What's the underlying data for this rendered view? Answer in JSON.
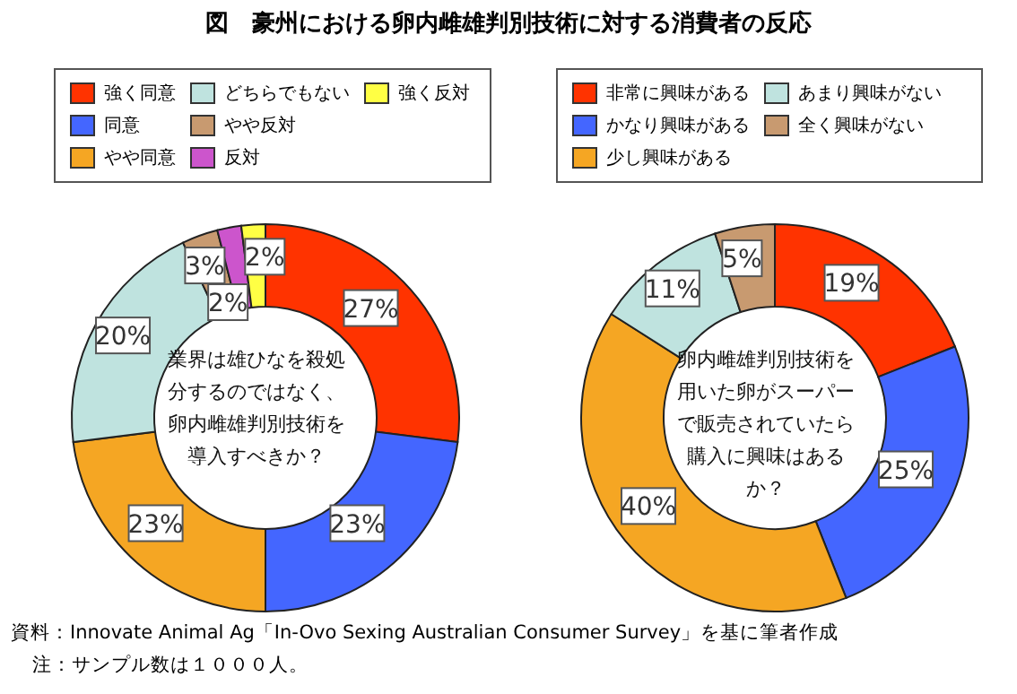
{
  "chart_data": [
    {
      "type": "donut",
      "title": "図　豪州における卵内雌雄判別技術に対する消費者の反応",
      "categories": [
        "強く同意",
        "同意",
        "やや同意",
        "どちらでもない",
        "やや反対",
        "反対",
        "強く反対"
      ],
      "values": [
        27,
        23,
        23,
        20,
        3,
        2,
        2
      ],
      "value_labels": [
        "27%",
        "23%",
        "23%",
        "20%",
        "3%",
        "2%",
        "2%"
      ],
      "colors": [
        "#ff3300",
        "#4466ff",
        "#f5a623",
        "#bfe3df",
        "#c89a70",
        "#cc55cc",
        "#ffff44"
      ],
      "legend": "top",
      "annotations": [
        "業界は雄ひなを殺処分するのではなく、卵内雌雄判別技術を導入すべきか？",
        "資料：Innovate Animal Ag「In-Ovo Sexing Australian Consumer Survey」を基に筆者作成",
        "注：サンプル数は１０００人。"
      ]
    },
    {
      "type": "donut",
      "categories": [
        "非常に興味がある",
        "かなり興味がある",
        "少し興味がある",
        "あまり興味がない",
        "全く興味がない"
      ],
      "values": [
        19,
        25,
        40,
        11,
        5
      ],
      "value_labels": [
        "19%",
        "25%",
        "40%",
        "11%",
        "5%"
      ],
      "colors": [
        "#ff3300",
        "#4466ff",
        "#f5a623",
        "#bfe3df",
        "#c89a70"
      ],
      "legend": "top",
      "annotations": [
        "卵内雌雄判別技術を用いた卵がスーパーで販売されていたら購入に興味はあるか？"
      ]
    }
  ]
}
